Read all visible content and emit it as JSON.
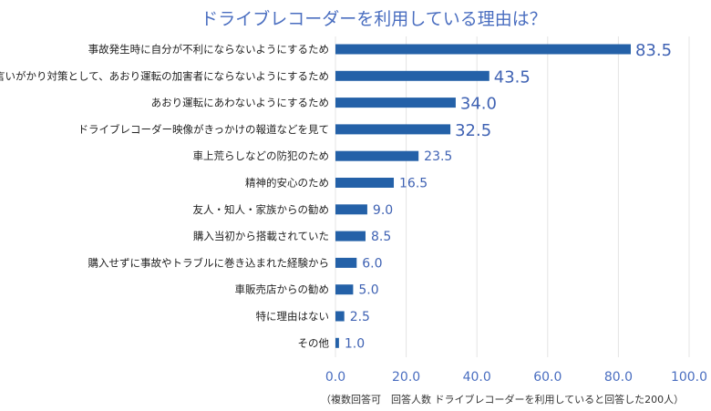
{
  "chart_data": {
    "type": "bar",
    "orientation": "horizontal",
    "title": "ドライブレコーダーを利用している理由は？",
    "categories": [
      "事故発生時に自分が不利にならないようにするため",
      "言いがかり対策として、あおり運転の加害者にならないようにするため",
      "あおり運転にあわないようにするため",
      "ドライブレコーダー映像がきっかけの報道などを見て",
      "車上荒らしなどの防犯のため",
      "精神的安心のため",
      "友人・知人・家族からの勧め",
      "購入当初から搭載されていた",
      "購入せずに事故やトラブルに巻き込まれた経験から",
      "車販売店からの勧め",
      "特に理由はない",
      "その他"
    ],
    "values": [
      83.5,
      43.5,
      34.0,
      32.5,
      23.5,
      16.5,
      9.0,
      8.5,
      6.0,
      5.0,
      2.5,
      1.0
    ],
    "value_labels": [
      "83.5",
      "43.5",
      "34.0",
      "32.5",
      "23.5",
      "16.5",
      "9.0",
      "8.5",
      "6.0",
      "5.0",
      "2.5",
      "1.0"
    ],
    "xlim": [
      0,
      100
    ],
    "xticks": [
      "0.0",
      "20.0",
      "40.0",
      "60.0",
      "80.0",
      "100.0"
    ],
    "grid": true,
    "bar_color": "#2461a8",
    "label_color": "#3f62b3",
    "note": "（複数回答可　回答人数 ドライブレコーダーを利用していると回答した200人）"
  }
}
